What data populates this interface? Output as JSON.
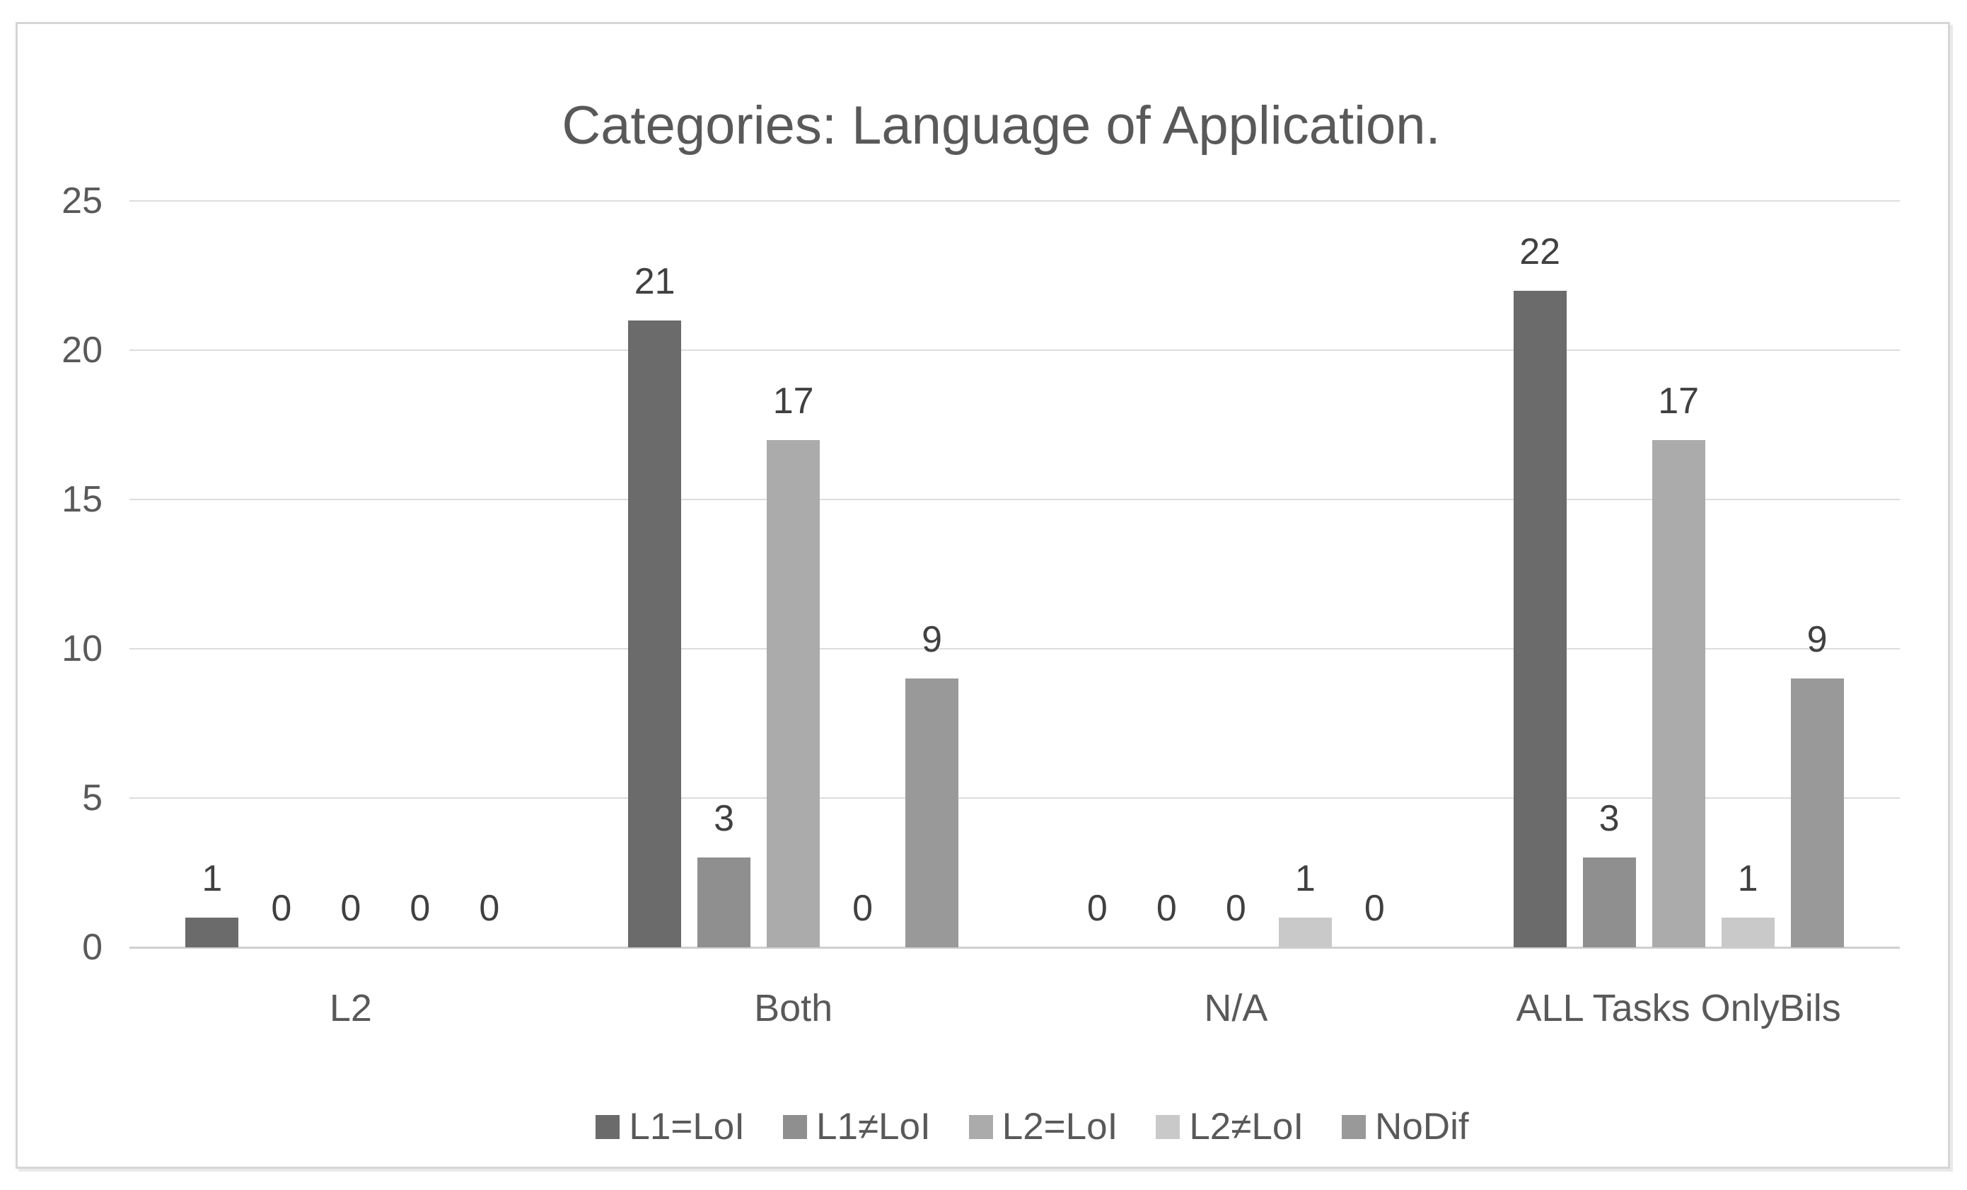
{
  "chart_data": {
    "type": "bar",
    "title": "Categories: Language of Application.",
    "categories": [
      "L2",
      "Both",
      "N/A",
      "ALL Tasks OnlyBils"
    ],
    "series": [
      {
        "name": "L1=LoI",
        "color": "#6b6b6b",
        "values": [
          1,
          21,
          0,
          22
        ]
      },
      {
        "name": "L1≠LoI",
        "color": "#8f8f8f",
        "values": [
          0,
          3,
          0,
          3
        ]
      },
      {
        "name": "L2=LoI",
        "color": "#ababab",
        "values": [
          0,
          17,
          0,
          17
        ]
      },
      {
        "name": "L2≠LoI",
        "color": "#c9c9c9",
        "values": [
          0,
          0,
          1,
          1
        ]
      },
      {
        "name": "NoDif",
        "color": "#999999",
        "values": [
          0,
          9,
          0,
          9
        ]
      }
    ],
    "y_axis": {
      "min": 0,
      "max": 25,
      "tick_step": 5,
      "ticks": [
        0,
        5,
        10,
        15,
        20,
        25
      ]
    },
    "grid": true,
    "data_labels": true,
    "legend_position": "bottom"
  },
  "colors": {
    "background": "#ffffff",
    "frame_border": "#d6d6d6",
    "gridline": "#dcdcdc",
    "axis_text": "#595959",
    "data_label_text": "#404040",
    "title_text": "#595959"
  }
}
